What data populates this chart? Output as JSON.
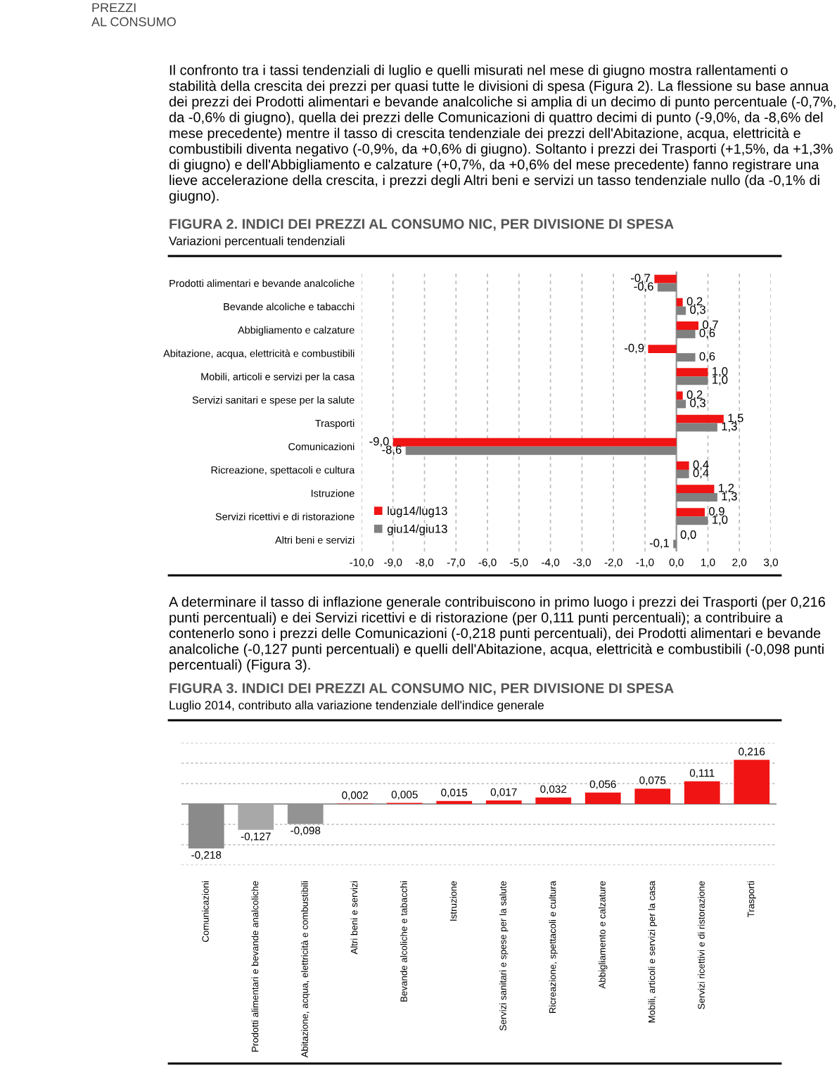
{
  "chart_data": [
    {
      "type": "other",
      "annotations": [
        "PREZZI\nAL CONSUMO",
        "Il confronto tra i tassi tendenziali di luglio e quelli misurati nel mese di giugno mostra rallentamenti o stabilità della crescita dei prezzi per quasi tutte le divisioni di spesa (Figura 2). La flessione su base annua dei prezzi dei Prodotti alimentari e bevande analcoliche si amplia di un decimo di punto percentuale (-0,7%, da -0,6% di giugno), quella dei prezzi delle Comunicazioni di quattro decimi di punto (-9,0%, da -8,6% del mese precedente) mentre il tasso di crescita tendenziale dei prezzi dell'Abitazione, acqua, elettricità e combustibili diventa negativo (-0,9%, da +0,6% di giugno). Soltanto i prezzi dei Trasporti (+1,5%, da +1,3% di giugno) e dell'Abbigliamento e calzature (+0,7%, da +0,6% del mese precedente) fanno registrare una lieve accelerazione della crescita, i prezzi degli Altri beni e servizi un tasso tendenziale nullo (da -0,1% di giugno)."
      ]
    },
    {
      "type": "bar",
      "orientation": "horizontal",
      "title": "FIGURA 2. INDICI DEI PREZZI AL CONSUMO NIC, PER DIVISIONE DI SPESA",
      "subtitle": "Variazioni percentuali tendenziali",
      "categories": [
        "Prodotti alimentari e bevande analcoliche",
        "Bevande alcoliche e tabacchi",
        "Abbigliamento e calzature",
        "Abitazione, acqua, elettricità e combustibili",
        "Mobili, articoli e servizi per la casa",
        "Servizi sanitari e spese per la salute",
        "Trasporti",
        "Comunicazioni",
        "Ricreazione, spettacoli e cultura",
        "Istruzione",
        "Servizi ricettivi e di ristorazione",
        "Altri beni e servizi"
      ],
      "series": [
        {
          "name": "lug14/lug13",
          "color": "#f01414",
          "values": [
            -0.7,
            0.2,
            0.7,
            -0.9,
            1.0,
            0.2,
            1.5,
            -9.0,
            0.4,
            1.2,
            0.9,
            0.0
          ],
          "value_labels": [
            "-0,7",
            "0,2",
            "0,7",
            "-0,9",
            "1,0",
            "0,2",
            "1,5",
            "-9,0",
            "0,4",
            "1,2",
            "0,9",
            "0,0"
          ]
        },
        {
          "name": "giu14/giu13",
          "color": "#808080",
          "values": [
            -0.6,
            0.3,
            0.6,
            0.6,
            1.0,
            0.3,
            1.3,
            -8.6,
            0.4,
            1.3,
            1.0,
            -0.1
          ],
          "value_labels": [
            "-0,6",
            "0,3",
            "0,6",
            "0,6",
            "1,0",
            "0,3",
            "1,3",
            "-8,6",
            "0,4",
            "1,3",
            "1,0",
            "-0,1"
          ]
        }
      ],
      "xlim": [
        -10,
        3
      ],
      "xticks": [
        {
          "value": -10,
          "label": "-10,0"
        },
        {
          "value": -9,
          "label": "-9,0"
        },
        {
          "value": -8,
          "label": "-8,0"
        },
        {
          "value": -7,
          "label": "-7,0"
        },
        {
          "value": -6,
          "label": "-6,0"
        },
        {
          "value": -5,
          "label": "-5,0"
        },
        {
          "value": -4,
          "label": "-4,0"
        },
        {
          "value": -3,
          "label": "-3,0"
        },
        {
          "value": -2,
          "label": "-2,0"
        },
        {
          "value": -1,
          "label": "-1,0"
        },
        {
          "value": 0,
          "label": "0,0"
        },
        {
          "value": 1,
          "label": "1,0"
        },
        {
          "value": 2,
          "label": "2,0"
        },
        {
          "value": 3,
          "label": "3,0"
        }
      ],
      "grid": "x",
      "legend": "bottom left"
    },
    {
      "type": "other",
      "annotations": [
        "A determinare il tasso di inflazione generale contribuiscono in primo luogo i prezzi dei Trasporti (per 0,216 punti percentuali) e dei Servizi ricettivi e di ristorazione (per 0,111 punti percentuali); a contribuire a contenerlo sono i prezzi delle Comunicazioni (-0,218 punti percentuali), dei Prodotti alimentari e bevande analcoliche (-0,127 punti percentuali) e quelli dell'Abitazione, acqua, elettricità e combustibili (-0,098 punti percentuali) (Figura 3)."
      ]
    },
    {
      "type": "bar",
      "title": "FIGURA 3. INDICI DEI PREZZI AL CONSUMO NIC, PER DIVISIONE DI SPESA",
      "subtitle": "Luglio 2014, contributo alla variazione tendenziale dell'indice generale",
      "categories": [
        "Comunicazioni",
        "Prodotti alimentari e bevande analcoliche",
        "Abitazione, acqua, elettricità e combustibili",
        "Altri beni e servizi",
        "Bevande alcoliche e tabacchi",
        "Istruzione",
        "Servizi sanitari e spese per la salute",
        "Ricreazione, spettacoli e cultura",
        "Abbigliamento e calzature",
        "Mobili, articoli e servizi per la casa",
        "Servizi ricettivi e di ristorazione",
        "Trasporti"
      ],
      "values": [
        -0.218,
        -0.127,
        -0.098,
        0.002,
        0.005,
        0.015,
        0.017,
        0.032,
        0.056,
        0.075,
        0.111,
        0.216
      ],
      "colors": [
        "#8a8a8a",
        "#a8a8a8",
        "#939393",
        "#f01414",
        "#f01414",
        "#f01414",
        "#f01414",
        "#f01414",
        "#f01414",
        "#f01414",
        "#f01414",
        "#f01414"
      ],
      "value_labels": [
        "-0,218",
        "-0,127",
        "-0,098",
        "0,002",
        "0,005",
        "0,015",
        "0,017",
        "0,032",
        "0,056",
        "0,075",
        "0,111",
        "0,216"
      ],
      "ylim": [
        -0.3,
        0.3
      ],
      "yticks": [
        {
          "value": -0.3,
          "label": null
        },
        {
          "value": -0.2,
          "label": null
        },
        {
          "value": -0.1,
          "label": null
        },
        {
          "value": 0,
          "label": null
        },
        {
          "value": 0.1,
          "label": null
        },
        {
          "value": 0.2,
          "label": null
        },
        {
          "value": 0.3,
          "label": null
        }
      ],
      "tick_labels": "x",
      "grid": "y"
    }
  ]
}
